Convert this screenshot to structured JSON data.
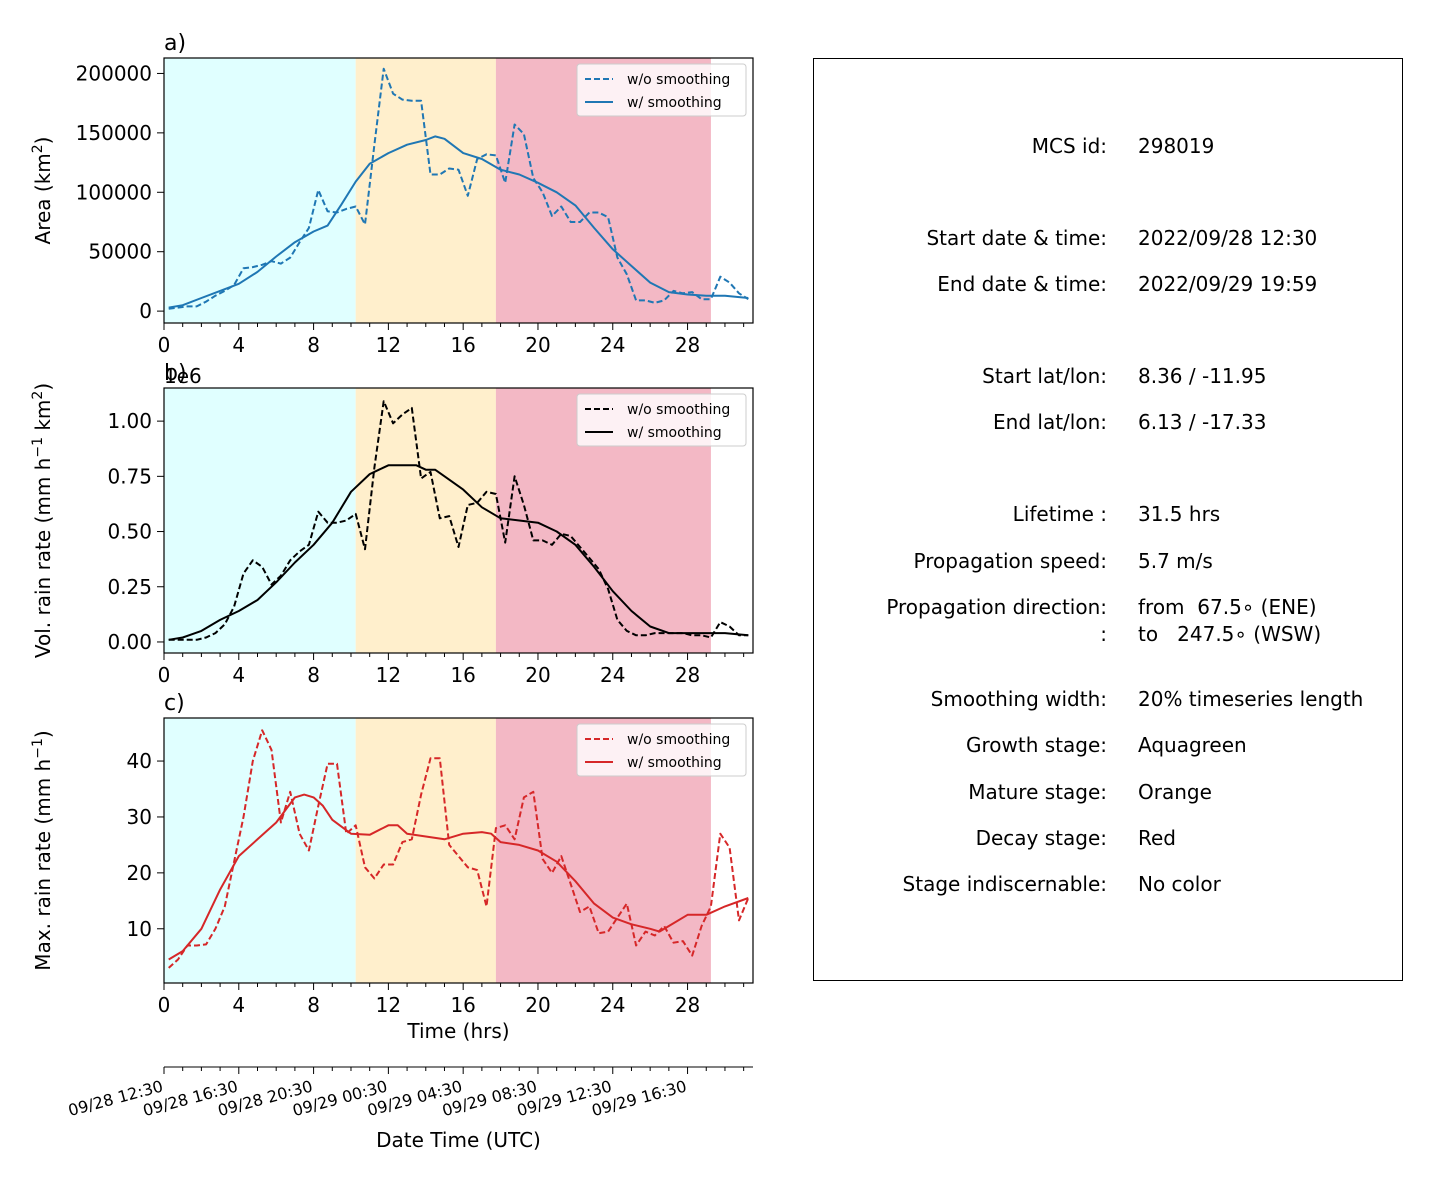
{
  "colors": {
    "growth": "#e0ffff",
    "mature": "#ffefcc",
    "decay": "#f3b8c5",
    "area_series": "#1f77b4",
    "volrain_series": "#000000",
    "maxrain_series": "#d62728"
  },
  "stage_spans_hrs": {
    "growth": [
      0,
      10.25
    ],
    "mature": [
      10.25,
      17.75
    ],
    "decay": [
      17.75,
      29.25
    ]
  },
  "chart_data": [
    {
      "type": "line",
      "panel_label": "a)",
      "ylabel": "Area  (km²)",
      "xlabel": "",
      "xlim": [
        0,
        31.5
      ],
      "ylim": [
        -10000,
        213000
      ],
      "xticks": [
        0,
        4,
        8,
        12,
        16,
        20,
        24,
        28
      ],
      "xtick_labels": [
        "0",
        "4",
        "8",
        "12",
        "16",
        "20",
        "24",
        "28"
      ],
      "yticks": [
        0,
        50000,
        100000,
        150000,
        200000
      ],
      "ytick_labels": [
        "0",
        "50000",
        "100000",
        "150000",
        "200000"
      ],
      "legend_position": "upper right",
      "series": [
        {
          "name": "w/o smoothing",
          "style": "dashed",
          "x": [
            0.25,
            0.75,
            1.25,
            1.75,
            2.25,
            2.75,
            3.25,
            3.75,
            4.25,
            4.75,
            5.25,
            5.75,
            6.25,
            6.75,
            7.25,
            7.75,
            8.25,
            8.75,
            9.25,
            9.75,
            10.25,
            10.75,
            11.25,
            11.75,
            12.25,
            12.75,
            13.25,
            13.75,
            14.25,
            14.75,
            15.25,
            15.75,
            16.25,
            16.75,
            17.25,
            17.75,
            18.25,
            18.75,
            19.25,
            19.75,
            20.25,
            20.75,
            21.25,
            21.75,
            22.25,
            22.75,
            23.25,
            23.75,
            24.25,
            24.75,
            25.25,
            25.75,
            26.25,
            26.75,
            27.25,
            27.75,
            28.25,
            28.75,
            29.25,
            29.75,
            30.25,
            30.75,
            31.25
          ],
          "values": [
            2000,
            3000,
            4000,
            4000,
            8000,
            13000,
            17000,
            22000,
            36000,
            37000,
            39000,
            42000,
            40000,
            45000,
            58000,
            70000,
            102000,
            84000,
            83000,
            86000,
            88000,
            73000,
            140000,
            204000,
            183000,
            178000,
            177000,
            177000,
            115000,
            115000,
            120000,
            119000,
            97000,
            128000,
            132000,
            131000,
            108000,
            157000,
            149000,
            112000,
            100000,
            80000,
            88000,
            75000,
            75000,
            83000,
            83000,
            79000,
            45000,
            31000,
            9000,
            9000,
            7000,
            9000,
            17000,
            15000,
            16000,
            10000,
            10000,
            29000,
            24000,
            15000,
            10000
          ]
        },
        {
          "name": "w/ smoothing",
          "style": "solid",
          "x": [
            0.25,
            1,
            2,
            3,
            4,
            5,
            6,
            7,
            8,
            8.75,
            9.5,
            10.25,
            11,
            12,
            13,
            14,
            14.5,
            15,
            16,
            17,
            18,
            19,
            20,
            21,
            22,
            23,
            24,
            25,
            26,
            27,
            28,
            29,
            30,
            31.25
          ],
          "values": [
            3000,
            5000,
            11000,
            17000,
            23000,
            33000,
            46000,
            58000,
            67000,
            72000,
            90000,
            109000,
            124000,
            133000,
            140000,
            144000,
            147000,
            145000,
            133000,
            128000,
            119000,
            115000,
            108000,
            100000,
            89000,
            70000,
            52000,
            38000,
            24000,
            16000,
            14000,
            13000,
            13000,
            11000
          ]
        }
      ]
    },
    {
      "type": "line",
      "panel_label": "b)",
      "offset_label": "1e6",
      "ylabel": "Vol. rain rate (mm h⁻¹ km²)",
      "xlabel": "",
      "xlim": [
        0,
        31.5
      ],
      "ylim": [
        -0.05,
        1.15
      ],
      "xticks": [
        0,
        4,
        8,
        12,
        16,
        20,
        24,
        28
      ],
      "xtick_labels": [
        "0",
        "4",
        "8",
        "12",
        "16",
        "20",
        "24",
        "28"
      ],
      "yticks": [
        0,
        0.25,
        0.5,
        0.75,
        1.0
      ],
      "ytick_labels": [
        "0.00",
        "0.25",
        "0.50",
        "0.75",
        "1.00"
      ],
      "legend_position": "upper right",
      "series": [
        {
          "name": "w/o smoothing",
          "style": "dashed",
          "x": [
            0.25,
            0.75,
            1.25,
            1.75,
            2.25,
            2.75,
            3.25,
            3.75,
            4.25,
            4.75,
            5.25,
            5.75,
            6.25,
            6.75,
            7.25,
            7.75,
            8.25,
            8.75,
            9.25,
            9.75,
            10.25,
            10.75,
            11.25,
            11.75,
            12.25,
            12.75,
            13.25,
            13.75,
            14.25,
            14.75,
            15.25,
            15.75,
            16.25,
            16.75,
            17.25,
            17.75,
            18.25,
            18.75,
            19.25,
            19.75,
            20.25,
            20.75,
            21.25,
            21.75,
            22.25,
            22.75,
            23.25,
            23.75,
            24.25,
            24.75,
            25.25,
            25.75,
            26.25,
            26.75,
            27.25,
            27.75,
            28.25,
            28.75,
            29.25,
            29.75,
            30.25,
            30.75,
            31.25
          ],
          "values": [
            0.01,
            0.01,
            0.01,
            0.01,
            0.02,
            0.04,
            0.08,
            0.16,
            0.31,
            0.37,
            0.34,
            0.26,
            0.3,
            0.37,
            0.41,
            0.44,
            0.59,
            0.54,
            0.54,
            0.55,
            0.58,
            0.42,
            0.79,
            1.09,
            0.99,
            1.03,
            1.06,
            0.74,
            0.77,
            0.56,
            0.57,
            0.43,
            0.62,
            0.63,
            0.68,
            0.67,
            0.45,
            0.75,
            0.62,
            0.46,
            0.46,
            0.44,
            0.49,
            0.48,
            0.43,
            0.38,
            0.33,
            0.24,
            0.1,
            0.05,
            0.03,
            0.03,
            0.04,
            0.04,
            0.04,
            0.04,
            0.03,
            0.03,
            0.02,
            0.09,
            0.07,
            0.03,
            0.03
          ]
        },
        {
          "name": "w/ smoothing",
          "style": "solid",
          "x": [
            0.25,
            1,
            2,
            3,
            4,
            5,
            6,
            7,
            8,
            9,
            10,
            11,
            11.5,
            12,
            12.5,
            13,
            13.5,
            14,
            14.5,
            15,
            16,
            17,
            18,
            19,
            20,
            21,
            22,
            23,
            24,
            25,
            26,
            27,
            28,
            29,
            30,
            31.25
          ],
          "values": [
            0.01,
            0.02,
            0.05,
            0.1,
            0.14,
            0.19,
            0.27,
            0.36,
            0.44,
            0.54,
            0.68,
            0.76,
            0.78,
            0.8,
            0.8,
            0.8,
            0.8,
            0.78,
            0.78,
            0.75,
            0.69,
            0.61,
            0.56,
            0.55,
            0.54,
            0.5,
            0.44,
            0.34,
            0.23,
            0.14,
            0.07,
            0.04,
            0.04,
            0.04,
            0.04,
            0.03
          ]
        }
      ]
    },
    {
      "type": "line",
      "panel_label": "c)",
      "ylabel": "Max. rain rate  (mm h⁻¹)",
      "xlabel": "Time (hrs)",
      "xlim": [
        0,
        31.5
      ],
      "ylim": [
        0.3,
        47.7
      ],
      "xticks": [
        0,
        4,
        8,
        12,
        16,
        20,
        24,
        28
      ],
      "xtick_labels": [
        "0",
        "4",
        "8",
        "12",
        "16",
        "20",
        "24",
        "28"
      ],
      "yticks": [
        10,
        20,
        30,
        40
      ],
      "ytick_labels": [
        "10",
        "20",
        "30",
        "40"
      ],
      "legend_position": "upper right",
      "secondary_xaxis": {
        "label": "Date Time (UTC)",
        "tick_hrs": [
          0,
          4,
          8,
          12,
          16,
          20,
          24,
          28
        ],
        "tick_labels": [
          "09/28 12:30",
          "09/28 16:30",
          "09/28 20:30",
          "09/29 00:30",
          "09/29 04:30",
          "09/29 08:30",
          "09/29 12:30",
          "09/29 16:30"
        ]
      },
      "series": [
        {
          "name": "w/o smoothing",
          "style": "dashed",
          "x": [
            0.25,
            0.75,
            1.25,
            1.75,
            2.25,
            2.75,
            3.25,
            3.75,
            4.25,
            4.75,
            5.25,
            5.75,
            6.25,
            6.75,
            7.25,
            7.75,
            8.25,
            8.75,
            9.25,
            9.75,
            10.25,
            10.75,
            11.25,
            11.75,
            12.25,
            12.75,
            13.25,
            13.75,
            14.25,
            14.75,
            15.25,
            15.75,
            16.25,
            16.75,
            17.25,
            17.75,
            18.25,
            18.75,
            19.25,
            19.75,
            20.25,
            20.75,
            21.25,
            21.75,
            22.25,
            22.75,
            23.25,
            23.75,
            24.25,
            24.75,
            25.25,
            25.75,
            26.25,
            26.75,
            27.25,
            27.75,
            28.25,
            28.75,
            29.25,
            29.75,
            30.25,
            30.75,
            31.25
          ],
          "values": [
            3,
            4.5,
            7,
            7,
            7.2,
            10,
            14,
            22,
            30,
            40,
            45.5,
            42,
            29,
            34.5,
            27,
            24,
            32,
            39.5,
            39.5,
            27,
            28.5,
            21,
            19,
            21.5,
            21.5,
            25.5,
            26,
            34,
            40.5,
            40.5,
            25,
            23,
            21,
            20.5,
            14,
            28,
            28.5,
            26,
            33.5,
            34.5,
            22.5,
            20,
            23,
            18,
            13,
            14,
            9.2,
            9.5,
            12,
            14.5,
            7,
            9.5,
            8.8,
            10.5,
            7.5,
            7.8,
            5.2,
            10.5,
            14,
            27,
            24.5,
            11.5,
            15.5
          ]
        },
        {
          "name": "w/ smoothing",
          "style": "solid",
          "x": [
            0.25,
            1,
            2,
            3,
            4,
            5,
            6,
            7,
            7.5,
            8,
            8.5,
            9,
            10,
            11,
            12,
            12.5,
            13,
            14,
            15,
            16,
            17,
            17.5,
            18,
            19,
            20,
            21,
            22,
            23,
            24,
            25,
            26,
            26.5,
            27,
            28,
            29,
            30,
            31.25
          ],
          "values": [
            4.5,
            6,
            10,
            17,
            23,
            26,
            29,
            33.5,
            34,
            33.5,
            32,
            29.5,
            27,
            26.8,
            28.5,
            28.5,
            27,
            26.5,
            26,
            27,
            27.3,
            27,
            25.5,
            25,
            24,
            22,
            18.5,
            14.5,
            12,
            10.8,
            10,
            9.5,
            10.5,
            12.5,
            12.5,
            14,
            15.5
          ]
        }
      ]
    }
  ],
  "info_panel": {
    "rows": [
      {
        "label": "MCS id:",
        "value": "298019"
      },
      {
        "label": "Start date & time:",
        "value": "2022/09/28 12:30"
      },
      {
        "label": "End date & time:",
        "value": "2022/09/29 19:59"
      },
      {
        "label": "Start lat/lon:",
        "value": "8.36 / -11.95"
      },
      {
        "label": "End lat/lon:",
        "value": "6.13 / -17.33"
      },
      {
        "label": "Lifetime :",
        "value": "31.5 hrs"
      },
      {
        "label": "Propagation speed:",
        "value": "5.7 m/s"
      },
      {
        "label": "Propagation direction:",
        "value": "from  67.5∘ (ENE)"
      },
      {
        "label": ":",
        "value": "to   247.5∘ (WSW)"
      },
      {
        "label": "Smoothing width:",
        "value": "20% timeseries length"
      },
      {
        "label": "Growth stage:",
        "value": "Aquagreen"
      },
      {
        "label": "Mature stage:",
        "value": "Orange"
      },
      {
        "label": "Decay stage:",
        "value": "Red"
      },
      {
        "label": "Stage indiscernable:",
        "value": "No color"
      }
    ]
  }
}
